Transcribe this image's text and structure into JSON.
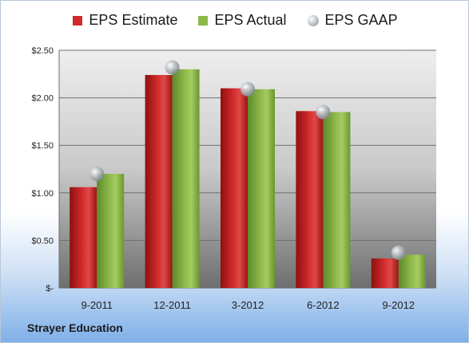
{
  "company": "Strayer Education",
  "colors": {
    "estimate": "#d12a2a",
    "actual": "#8db84a",
    "gaap": "#b8bec4"
  },
  "chart_data": {
    "type": "bar",
    "categories": [
      "9-2011",
      "12-2011",
      "3-2012",
      "6-2012",
      "9-2012"
    ],
    "series": [
      {
        "name": "EPS Estimate",
        "values": [
          1.06,
          2.24,
          2.1,
          1.86,
          0.31
        ]
      },
      {
        "name": "EPS Actual",
        "values": [
          1.2,
          2.3,
          2.09,
          1.85,
          0.35
        ]
      },
      {
        "name": "EPS GAAP",
        "values": [
          1.2,
          2.32,
          2.09,
          1.85,
          0.37
        ]
      }
    ],
    "ylim": [
      0,
      2.5
    ],
    "yticks": [
      0,
      0.5,
      1.0,
      1.5,
      2.0,
      2.5
    ],
    "ytick_labels": [
      "$-",
      "$0.50",
      "$1.00",
      "$1.50",
      "$2.00",
      "$2.50"
    ],
    "legend_position": "top",
    "grid": true
  }
}
